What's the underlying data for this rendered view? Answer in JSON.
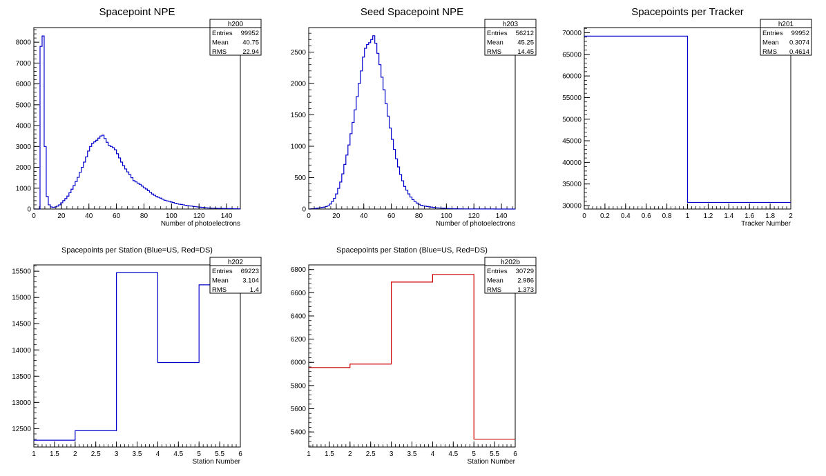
{
  "colors": {
    "blue": "#0000cc",
    "red": "#cc0000",
    "axis": "#000000"
  },
  "chart_data": [
    {
      "type": "histogram",
      "title": "Spacepoint NPE",
      "xlabel": "Number of photoelectrons",
      "xlim": [
        0,
        150
      ],
      "ylim": [
        0,
        8700
      ],
      "xticks": [
        0,
        20,
        40,
        60,
        80,
        100,
        120,
        140
      ],
      "yticks": [
        0,
        1000,
        2000,
        3000,
        4000,
        5000,
        6000,
        7000,
        8000
      ],
      "bin_edges_start": 0,
      "bin_width": 1.5,
      "values": [
        0,
        0,
        0,
        7800,
        8300,
        3000,
        600,
        200,
        100,
        80,
        100,
        140,
        200,
        300,
        400,
        500,
        620,
        780,
        950,
        1120,
        1320,
        1520,
        1760,
        2000,
        2250,
        2500,
        2780,
        3000,
        3150,
        3220,
        3300,
        3400,
        3500,
        3540,
        3380,
        3200,
        3050,
        3000,
        2940,
        2840,
        2650,
        2450,
        2250,
        2080,
        1920,
        1780,
        1650,
        1500,
        1360,
        1300,
        1240,
        1180,
        1100,
        1020,
        960,
        880,
        800,
        720,
        660,
        600,
        560,
        520,
        470,
        420,
        390,
        370,
        340,
        310,
        280,
        250,
        230,
        220,
        200,
        180,
        160,
        150,
        140,
        120,
        110,
        100,
        90,
        80,
        70,
        60,
        50,
        45,
        40,
        40,
        35,
        30,
        30,
        25,
        25,
        20,
        20,
        20,
        15,
        15,
        10,
        10
      ],
      "color": "blue",
      "stats": {
        "name": "h200",
        "rows": [
          [
            "Entries",
            "99952"
          ],
          [
            "Mean",
            "40.75"
          ],
          [
            "RMS",
            "22.94"
          ]
        ]
      }
    },
    {
      "type": "histogram",
      "title": "Seed Spacepoint NPE",
      "xlabel": "Number of photoelectrons",
      "xlim": [
        0,
        150
      ],
      "ylim": [
        0,
        2890
      ],
      "xticks": [
        0,
        20,
        40,
        60,
        80,
        100,
        120,
        140
      ],
      "yticks": [
        0,
        500,
        1000,
        1500,
        2000,
        2500
      ],
      "bin_edges_start": 0,
      "bin_width": 1.5,
      "values": [
        0,
        5,
        5,
        10,
        15,
        20,
        25,
        30,
        40,
        50,
        80,
        120,
        170,
        240,
        330,
        430,
        560,
        710,
        860,
        1020,
        1200,
        1380,
        1580,
        1790,
        2000,
        2200,
        2420,
        2560,
        2620,
        2650,
        2700,
        2760,
        2640,
        2480,
        2300,
        2100,
        1900,
        1680,
        1480,
        1290,
        1110,
        950,
        800,
        670,
        550,
        450,
        360,
        300,
        240,
        190,
        150,
        120,
        95,
        75,
        60,
        50,
        45,
        40,
        35,
        30,
        25,
        20,
        18,
        16,
        14,
        12,
        10,
        8,
        6,
        5,
        4,
        4,
        3,
        3,
        2,
        2,
        2,
        1,
        1,
        1,
        1,
        1,
        1,
        1,
        1,
        1,
        1,
        1,
        1,
        1,
        0,
        0,
        0,
        0,
        0,
        0,
        0,
        0,
        0,
        0
      ],
      "color": "blue",
      "stats": {
        "name": "h203",
        "rows": [
          [
            "Entries",
            "56212"
          ],
          [
            "Mean",
            "45.25"
          ],
          [
            "RMS",
            "14.45"
          ]
        ]
      }
    },
    {
      "type": "histogram",
      "title": "Spacepoints per Tracker",
      "xlabel": "Tracker Number",
      "xlim": [
        0,
        2
      ],
      "ylim": [
        29200,
        71200
      ],
      "xticks": [
        0,
        0.2,
        0.4,
        0.6,
        0.8,
        1,
        1.2,
        1.4,
        1.6,
        1.8,
        2
      ],
      "xtick_labels": [
        "0",
        "0.2",
        "0.4",
        "0.6",
        "0.8",
        "1",
        "1.2",
        "1.4",
        "1.6",
        "1.8",
        "2"
      ],
      "yticks": [
        30000,
        35000,
        40000,
        45000,
        50000,
        55000,
        60000,
        65000,
        70000
      ],
      "bin_edges_start": 0,
      "bin_width": 1,
      "values": [
        69223,
        30729
      ],
      "color": "blue",
      "stats": {
        "name": "h201",
        "rows": [
          [
            "Entries",
            "99952"
          ],
          [
            "Mean",
            "0.3074"
          ],
          [
            "RMS",
            "0.4614"
          ]
        ]
      }
    },
    {
      "type": "histogram",
      "title": "Spacepoints per Station (Blue=US, Red=DS)",
      "xlabel": "Station Number",
      "xlim": [
        1,
        6
      ],
      "ylim": [
        12150,
        15620
      ],
      "xticks": [
        1,
        1.5,
        2,
        2.5,
        3,
        3.5,
        4,
        4.5,
        5,
        5.5,
        6
      ],
      "xtick_labels": [
        "1",
        "1.5",
        "2",
        "2.5",
        "3",
        "3.5",
        "4",
        "4.5",
        "5",
        "5.5",
        "6"
      ],
      "yticks": [
        12500,
        13000,
        13500,
        14000,
        14500,
        15000,
        15500
      ],
      "bin_edges_start": 1,
      "bin_width": 1,
      "values": [
        12280,
        12460,
        15470,
        13760,
        15240
      ],
      "color": "blue",
      "stats": {
        "name": "h202",
        "rows": [
          [
            "Entries",
            "69223"
          ],
          [
            "Mean",
            "3.104"
          ],
          [
            "RMS",
            "1.4"
          ]
        ]
      }
    },
    {
      "type": "histogram",
      "title": "Spacepoints per Station (Blue=US, Red=DS)",
      "xlabel": "Station Number",
      "xlim": [
        1,
        6
      ],
      "ylim": [
        5270,
        6840
      ],
      "xticks": [
        1,
        1.5,
        2,
        2.5,
        3,
        3.5,
        4,
        4.5,
        5,
        5.5,
        6
      ],
      "xtick_labels": [
        "1",
        "1.5",
        "2",
        "2.5",
        "3",
        "3.5",
        "4",
        "4.5",
        "5",
        "5.5",
        "6"
      ],
      "yticks": [
        5400,
        5600,
        5800,
        6000,
        6200,
        6400,
        6600,
        6800
      ],
      "bin_edges_start": 1,
      "bin_width": 1,
      "values": [
        5955,
        5985,
        6692,
        6758,
        5338
      ],
      "color": "red",
      "stats": {
        "name": "h202b",
        "rows": [
          [
            "Entries",
            "30729"
          ],
          [
            "Mean",
            "2.986"
          ],
          [
            "RMS",
            "1.373"
          ]
        ]
      }
    }
  ]
}
